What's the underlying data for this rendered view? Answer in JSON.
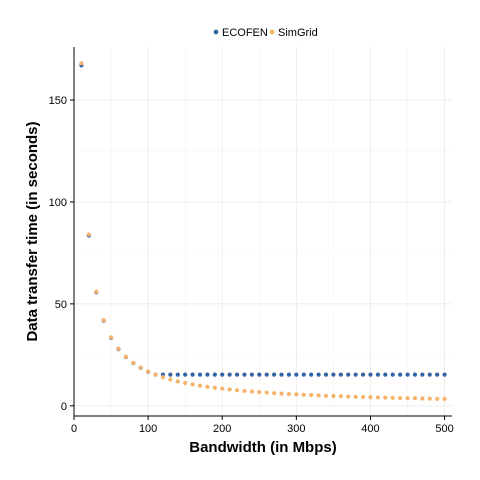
{
  "chart_data": {
    "type": "scatter",
    "xlabel": "Bandwidth (in Mbps)",
    "ylabel": "Data transfer time (in seconds)",
    "xlim": [
      0,
      510
    ],
    "ylim": [
      -5,
      176
    ],
    "xticks": [
      0,
      100,
      200,
      300,
      400,
      500
    ],
    "yticks": [
      0,
      50,
      100,
      150
    ],
    "grid": true,
    "legend_position": "top",
    "series": [
      {
        "name": "ECOFEN",
        "color": "#3465a4",
        "x": [
          10,
          20,
          30,
          40,
          50,
          60,
          70,
          80,
          90,
          100,
          110,
          120,
          130,
          140,
          150,
          160,
          170,
          180,
          190,
          200,
          210,
          220,
          230,
          240,
          250,
          260,
          270,
          280,
          290,
          300,
          310,
          320,
          330,
          340,
          350,
          360,
          370,
          380,
          390,
          400,
          410,
          420,
          430,
          440,
          450,
          460,
          470,
          480,
          490,
          500
        ],
        "y": [
          167,
          83.5,
          55.7,
          41.8,
          33.4,
          27.8,
          23.9,
          20.9,
          18.6,
          16.7,
          15.3,
          15.3,
          15.3,
          15.3,
          15.3,
          15.3,
          15.3,
          15.3,
          15.3,
          15.3,
          15.3,
          15.3,
          15.3,
          15.3,
          15.3,
          15.3,
          15.3,
          15.3,
          15.3,
          15.3,
          15.3,
          15.3,
          15.3,
          15.3,
          15.3,
          15.3,
          15.3,
          15.3,
          15.3,
          15.3,
          15.3,
          15.3,
          15.3,
          15.3,
          15.3,
          15.3,
          15.3,
          15.3,
          15.3,
          15.3
        ]
      },
      {
        "name": "SimGrid",
        "color": "#f5b26b",
        "x": [
          10,
          20,
          30,
          40,
          50,
          60,
          70,
          80,
          90,
          100,
          110,
          120,
          130,
          140,
          150,
          160,
          170,
          180,
          190,
          200,
          210,
          220,
          230,
          240,
          250,
          260,
          270,
          280,
          290,
          300,
          310,
          320,
          330,
          340,
          350,
          360,
          370,
          380,
          390,
          400,
          410,
          420,
          430,
          440,
          450,
          460,
          470,
          480,
          490,
          500
        ],
        "y": [
          168,
          84,
          56,
          42,
          33.6,
          28,
          24,
          21,
          18.7,
          16.8,
          15.3,
          14,
          12.9,
          12,
          11.2,
          10.5,
          9.9,
          9.3,
          8.8,
          8.4,
          8,
          7.6,
          7.3,
          7,
          6.7,
          6.5,
          6.2,
          6,
          5.8,
          5.6,
          5.4,
          5.3,
          5.1,
          4.9,
          4.8,
          4.7,
          4.5,
          4.4,
          4.3,
          4.2,
          4.1,
          4,
          3.9,
          3.8,
          3.7,
          3.7,
          3.6,
          3.5,
          3.4,
          3.4
        ]
      }
    ]
  }
}
